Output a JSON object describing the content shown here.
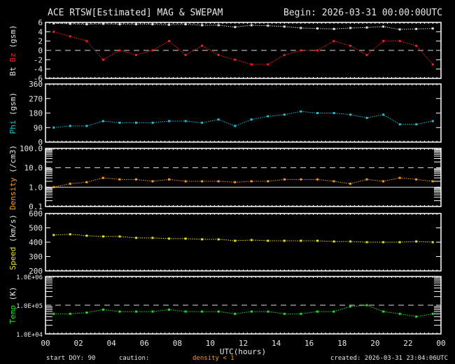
{
  "header": {
    "title": "ACE RTSW[Estimated] MAG & SWEPAM",
    "begin": "Begin: 2026-03-31 00:00:00UTC"
  },
  "footer": {
    "start_doy": "start DOY:  90",
    "caution": "caution:",
    "caution_item": "density < 1",
    "created": "created: 2026-03-31 23:04:06UTC"
  },
  "colors": {
    "bt": "#e0e0e0",
    "bz": "#ff1a1a",
    "phi": "#20c0d0",
    "density": "#ff9a10",
    "speed": "#e8e020",
    "temp": "#20e020",
    "axis": "#ffffff"
  },
  "chart_data": [
    {
      "type": "scatter",
      "title": "Bt Bz (gsm)",
      "ylabel_parts": [
        "Bt",
        "Bz",
        "(gsm)"
      ],
      "ylim": [
        -6,
        6
      ],
      "yticks": [
        "6",
        "4",
        "2",
        "0",
        "-2",
        "-4",
        "-6"
      ],
      "ytick_values": [
        6,
        4,
        2,
        0,
        -2,
        -4,
        -6
      ],
      "reference_lines": [
        0
      ],
      "x_hours": [
        0,
        1,
        2,
        3,
        4,
        5,
        6,
        7,
        8,
        9,
        10,
        11,
        12,
        13,
        14,
        15,
        16,
        17,
        18,
        19,
        20,
        21,
        22,
        23
      ],
      "series": [
        {
          "name": "Bt",
          "values": [
            5.8,
            5.7,
            5.6,
            5.7,
            5.6,
            5.6,
            5.6,
            5.5,
            5.6,
            5.4,
            5.4,
            5.0,
            5.4,
            5.3,
            5.1,
            4.8,
            4.7,
            4.6,
            4.8,
            4.9,
            5.1,
            4.5,
            4.6,
            4.7
          ]
        },
        {
          "name": "Bz",
          "values": [
            4,
            3,
            2,
            -2,
            0,
            -1,
            0,
            2,
            -1,
            1,
            -1,
            -2,
            -3,
            -3,
            -1,
            0,
            0,
            2,
            1,
            -1,
            2,
            2,
            1,
            -3
          ]
        }
      ]
    },
    {
      "type": "scatter",
      "title": "Phi (gsm)",
      "ylabel": "Phi (gsm)",
      "ylim": [
        0,
        360
      ],
      "yticks": [
        "360",
        "270",
        "180",
        "90",
        "0"
      ],
      "ytick_values": [
        360,
        270,
        180,
        90,
        0
      ],
      "series": [
        {
          "name": "Phi",
          "values": [
            90,
            100,
            100,
            130,
            120,
            120,
            120,
            130,
            130,
            120,
            140,
            100,
            140,
            160,
            170,
            190,
            180,
            180,
            170,
            150,
            170,
            110,
            110,
            130
          ]
        }
      ]
    },
    {
      "type": "scatter",
      "title": "Density (/cm3)",
      "ylabel": "Density (/cm3)",
      "yscale": "log",
      "ylim": [
        0.1,
        100
      ],
      "yticks": [
        "100.0",
        "10.0",
        "1.0",
        "0.1"
      ],
      "ytick_values": [
        100,
        10,
        1,
        0.1
      ],
      "reference_lines": [
        10,
        1
      ],
      "series": [
        {
          "name": "Density",
          "values": [
            1.0,
            1.5,
            1.8,
            3,
            2.5,
            2.5,
            2,
            2.5,
            2,
            2,
            2,
            1.8,
            2,
            2,
            2.5,
            2.5,
            2.5,
            2,
            1.5,
            2.5,
            2,
            3,
            2.5,
            2
          ]
        }
      ]
    },
    {
      "type": "scatter",
      "title": "Speed (km/s)",
      "ylabel": "Speed (km/s)",
      "ylim": [
        200,
        600
      ],
      "yticks": [
        "600",
        "500",
        "400",
        "300",
        "200"
      ],
      "ytick_values": [
        600,
        500,
        400,
        300,
        200
      ],
      "series": [
        {
          "name": "Speed",
          "values": [
            450,
            455,
            445,
            440,
            440,
            430,
            430,
            425,
            425,
            420,
            420,
            410,
            415,
            410,
            410,
            410,
            410,
            405,
            405,
            400,
            400,
            400,
            405,
            400
          ]
        }
      ]
    },
    {
      "type": "scatter",
      "title": "Temp (K)",
      "ylabel": "Temp (K)",
      "yscale": "log",
      "ylim": [
        10000,
        1000000
      ],
      "yticks": [
        "1.0E+06",
        "1.0E+05",
        "1.0E+04"
      ],
      "ytick_values": [
        1000000,
        100000,
        10000
      ],
      "reference_lines": [
        100000
      ],
      "series": [
        {
          "name": "Temp",
          "values": [
            50000,
            50000,
            55000,
            70000,
            60000,
            60000,
            60000,
            70000,
            60000,
            60000,
            60000,
            50000,
            60000,
            60000,
            50000,
            50000,
            60000,
            60000,
            90000,
            100000,
            60000,
            50000,
            40000,
            50000
          ]
        }
      ]
    }
  ],
  "xaxis": {
    "label": "UTC(hours)",
    "ticks": [
      "00",
      "02",
      "04",
      "06",
      "08",
      "10",
      "12",
      "14",
      "16",
      "18",
      "20",
      "22",
      "00"
    ],
    "range_hours": [
      0,
      24
    ]
  }
}
